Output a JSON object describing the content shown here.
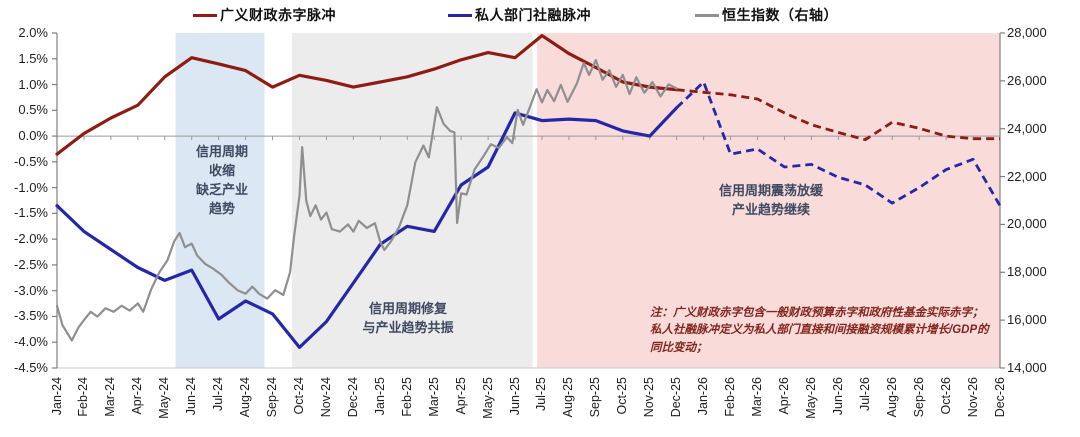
{
  "legend": [
    {
      "label": "广义财政赤字脉冲",
      "color": "#8e1c12"
    },
    {
      "label": "私人部门社融脉冲",
      "color": "#2527a8"
    },
    {
      "label": "恒生指数（右轴）",
      "color": "#8f8f8f"
    }
  ],
  "chart_data": {
    "type": "line",
    "x_categories": [
      "Jan-24",
      "Feb-24",
      "Mar-24",
      "Apr-24",
      "May-24",
      "Jun-24",
      "Jul-24",
      "Aug-24",
      "Sep-24",
      "Oct-24",
      "Nov-24",
      "Dec-24",
      "Jan-25",
      "Feb-25",
      "Mar-25",
      "Apr-25",
      "May-25",
      "Jun-25",
      "Jul-25",
      "Aug-25",
      "Sep-25",
      "Oct-25",
      "Nov-25",
      "Dec-25",
      "Jan-26",
      "Feb-26",
      "Mar-26",
      "Apr-26",
      "May-26",
      "Jun-26",
      "Jul-26",
      "Aug-26",
      "Sep-26",
      "Oct-26",
      "Nov-26",
      "Dec-26"
    ],
    "left_axis": {
      "min": -4.5,
      "max": 2.0,
      "step": 0.5,
      "tick_labels": [
        "2.0%",
        "1.5%",
        "1.0%",
        "0.5%",
        "0.0%",
        "-0.5%",
        "-1.0%",
        "-1.5%",
        "-2.0%",
        "-2.5%",
        "-3.0%",
        "-3.5%",
        "-4.0%",
        "-4.5%"
      ]
    },
    "right_axis": {
      "min": 14000,
      "max": 28000,
      "step": 2000,
      "tick_labels": [
        "28,000",
        "26,000",
        "24,000",
        "22,000",
        "20,000",
        "18,000",
        "16,000",
        "14,000"
      ]
    },
    "series": [
      {
        "name": "广义财政赤字脉冲",
        "axis": "left",
        "color": "#8e1c12",
        "width": 3.2,
        "solid_until_index": 23,
        "values": [
          -0.35,
          0.05,
          0.35,
          0.6,
          1.15,
          1.52,
          1.4,
          1.27,
          0.95,
          1.18,
          1.08,
          0.95,
          1.05,
          1.15,
          1.3,
          1.48,
          1.62,
          1.52,
          1.95,
          1.6,
          1.33,
          1.05,
          0.95,
          0.9,
          0.85,
          0.8,
          0.72,
          0.45,
          0.22,
          0.07,
          -0.07,
          0.27,
          0.15,
          0.0,
          -0.05,
          -0.05
        ]
      },
      {
        "name": "私人部门社融脉冲",
        "axis": "left",
        "color": "#2527a8",
        "width": 3.2,
        "solid_until_index": 23,
        "values": [
          -1.35,
          -1.85,
          -2.2,
          -2.55,
          -2.8,
          -2.6,
          -3.55,
          -3.2,
          -3.45,
          -4.1,
          -3.6,
          -2.85,
          -2.1,
          -1.75,
          -1.85,
          -0.95,
          -0.6,
          0.45,
          0.3,
          0.33,
          0.3,
          0.1,
          0.0,
          0.55,
          1.05,
          -0.35,
          -0.25,
          -0.6,
          -0.55,
          -0.8,
          -0.95,
          -1.3,
          -1.0,
          -0.65,
          -0.45,
          -1.35
        ]
      },
      {
        "name": "恒生指数（右轴）",
        "axis": "right",
        "color": "#8f8f8f",
        "width": 2.2,
        "points": [
          [
            0,
            16600
          ],
          [
            0.2,
            15800
          ],
          [
            0.55,
            15150
          ],
          [
            0.8,
            15700
          ],
          [
            1,
            16000
          ],
          [
            1.25,
            16350
          ],
          [
            1.5,
            16150
          ],
          [
            1.8,
            16500
          ],
          [
            2.1,
            16350
          ],
          [
            2.4,
            16600
          ],
          [
            2.7,
            16400
          ],
          [
            3,
            16700
          ],
          [
            3.2,
            16350
          ],
          [
            3.5,
            17300
          ],
          [
            3.8,
            18000
          ],
          [
            4.1,
            18500
          ],
          [
            4.35,
            19300
          ],
          [
            4.55,
            19640
          ],
          [
            4.75,
            19050
          ],
          [
            5,
            19200
          ],
          [
            5.2,
            18700
          ],
          [
            5.5,
            18350
          ],
          [
            5.8,
            18150
          ],
          [
            6.1,
            17900
          ],
          [
            6.4,
            17550
          ],
          [
            6.7,
            17250
          ],
          [
            7,
            17100
          ],
          [
            7.25,
            17400
          ],
          [
            7.5,
            17100
          ],
          [
            7.8,
            16900
          ],
          [
            8.1,
            17250
          ],
          [
            8.4,
            17050
          ],
          [
            8.65,
            18000
          ],
          [
            8.8,
            19500
          ],
          [
            9,
            21200
          ],
          [
            9.1,
            23230
          ],
          [
            9.25,
            21000
          ],
          [
            9.4,
            20350
          ],
          [
            9.6,
            20800
          ],
          [
            9.8,
            20200
          ],
          [
            10,
            20500
          ],
          [
            10.2,
            19800
          ],
          [
            10.5,
            19700
          ],
          [
            10.8,
            20000
          ],
          [
            11,
            19700
          ],
          [
            11.2,
            20150
          ],
          [
            11.5,
            19850
          ],
          [
            11.8,
            20050
          ],
          [
            12,
            19270
          ],
          [
            12.15,
            18930
          ],
          [
            12.4,
            19300
          ],
          [
            12.7,
            19900
          ],
          [
            13,
            20800
          ],
          [
            13.3,
            22600
          ],
          [
            13.6,
            23300
          ],
          [
            13.8,
            22800
          ],
          [
            14.1,
            24900
          ],
          [
            14.35,
            24200
          ],
          [
            14.6,
            23900
          ],
          [
            14.75,
            23850
          ],
          [
            14.85,
            20060
          ],
          [
            15,
            21300
          ],
          [
            15.2,
            21250
          ],
          [
            15.5,
            22300
          ],
          [
            15.8,
            22800
          ],
          [
            16.1,
            23350
          ],
          [
            16.4,
            23200
          ],
          [
            16.7,
            23650
          ],
          [
            16.9,
            23400
          ],
          [
            17.1,
            24780
          ],
          [
            17.3,
            24160
          ],
          [
            17.55,
            24900
          ],
          [
            17.8,
            25650
          ],
          [
            18,
            25100
          ],
          [
            18.2,
            25620
          ],
          [
            18.45,
            25150
          ],
          [
            18.7,
            25830
          ],
          [
            18.95,
            25120
          ],
          [
            19.3,
            25900
          ],
          [
            19.55,
            26750
          ],
          [
            19.75,
            26250
          ],
          [
            20,
            26870
          ],
          [
            20.25,
            26050
          ],
          [
            20.5,
            26450
          ],
          [
            20.75,
            25750
          ],
          [
            21,
            26250
          ],
          [
            21.25,
            25450
          ],
          [
            21.5,
            26150
          ],
          [
            21.8,
            25500
          ],
          [
            22.1,
            25950
          ],
          [
            22.4,
            25350
          ],
          [
            22.7,
            25850
          ],
          [
            23,
            25680
          ]
        ]
      }
    ],
    "regions": [
      {
        "name": "credit-contraction",
        "from": 4.4,
        "to": 7.7,
        "color": "#dbe7f3"
      },
      {
        "name": "credit-repair",
        "from": 8.72,
        "to": 17.65,
        "color": "#ececec"
      },
      {
        "name": "credit-slowdown",
        "from": 17.82,
        "to": 35.0,
        "color": "#f9dbda"
      }
    ],
    "legend_position": "top",
    "grid": "zero-line-only"
  },
  "annotations": [
    {
      "name": "credit-contraction",
      "lines": [
        "信用周期",
        "收缩",
        "缺乏产业",
        "趋势"
      ]
    },
    {
      "name": "credit-repair",
      "lines": [
        "信用周期修复",
        "与产业趋势共振"
      ]
    },
    {
      "name": "credit-slowdown",
      "lines": [
        "信用周期震荡放缓",
        "产业趋势继续"
      ]
    }
  ],
  "note": {
    "lines": [
      "注：广义财政赤字包含一般财政预算赤字和政府性基金实际赤字；",
      "私人社融脉冲定义为私人部门直接和间接融资规模累计增长/GDP的",
      "同比变动；"
    ]
  }
}
